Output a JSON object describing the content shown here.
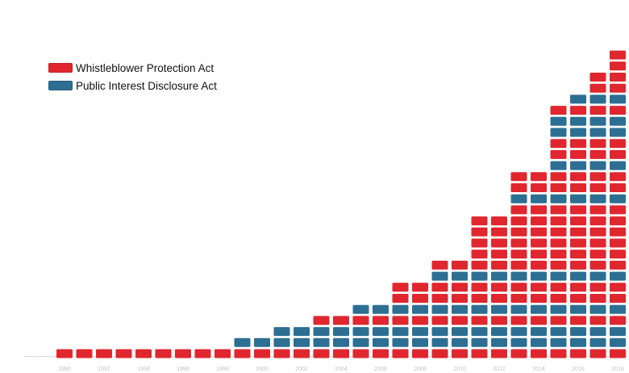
{
  "legend": {
    "wpa_label": "Whistleblower Protection Act",
    "pida_label": "Public Interest Disclosure Act"
  },
  "colors": {
    "wpa": "#e0262e",
    "pida": "#2d6f93",
    "faint_text": "#c4c4c4"
  },
  "chart_data": {
    "type": "bar",
    "title": "",
    "layout_note": "stacked tiles per year",
    "years": [
      1990,
      1991,
      1992,
      1993,
      1994,
      1995,
      1996,
      1997,
      1998,
      1999,
      2000,
      2001,
      2002,
      2003,
      2004,
      2005,
      2006,
      2007,
      2008,
      2009,
      2010,
      2011,
      2012,
      2013,
      2014,
      2015,
      2016,
      2017,
      2018
    ],
    "x_tick_labels": [
      1990,
      1992,
      1994,
      1996,
      1998,
      2000,
      2002,
      2004,
      2006,
      2008,
      2010,
      2012,
      2014,
      2016,
      2018
    ],
    "count_per_year": [
      1,
      1,
      1,
      1,
      1,
      1,
      1,
      1,
      2,
      2,
      5,
      5,
      5,
      5,
      7,
      7,
      7,
      8,
      8,
      9,
      9,
      13,
      13,
      17,
      17,
      23,
      24,
      26,
      28
    ],
    "layers": [
      {
        "type": "wpa",
        "entry_index": 0
      },
      {
        "type": "pida",
        "entry_index": 9
      },
      {
        "type": "pida",
        "entry_index": 11
      },
      {
        "type": "wpa",
        "entry_index": 13
      },
      {
        "type": "pida",
        "entry_index": 15
      },
      {
        "type": "wpa",
        "entry_index": 17
      },
      {
        "type": "wpa",
        "entry_index": 17
      },
      {
        "type": "pida",
        "entry_index": 19
      },
      {
        "type": "wpa",
        "entry_index": 19
      },
      {
        "type": "wpa",
        "entry_index": 21
      },
      {
        "type": "wpa",
        "entry_index": 21
      },
      {
        "type": "wpa",
        "entry_index": 21
      },
      {
        "type": "wpa",
        "entry_index": 21
      },
      {
        "type": "wpa",
        "entry_index": 23
      },
      {
        "type": "pida",
        "entry_index": 23
      },
      {
        "type": "wpa",
        "entry_index": 23
      },
      {
        "type": "wpa",
        "entry_index": 23
      },
      {
        "type": "pida",
        "entry_index": 25
      },
      {
        "type": "wpa",
        "entry_index": 25
      },
      {
        "type": "wpa",
        "entry_index": 25
      },
      {
        "type": "pida",
        "entry_index": 25
      },
      {
        "type": "pida",
        "entry_index": 25
      },
      {
        "type": "wpa",
        "entry_index": 25
      },
      {
        "type": "pida",
        "entry_index": 26
      },
      {
        "type": "wpa",
        "entry_index": 27
      },
      {
        "type": "wpa",
        "entry_index": 27
      },
      {
        "type": "wpa",
        "entry_index": 28
      },
      {
        "type": "wpa",
        "entry_index": 28
      }
    ]
  }
}
